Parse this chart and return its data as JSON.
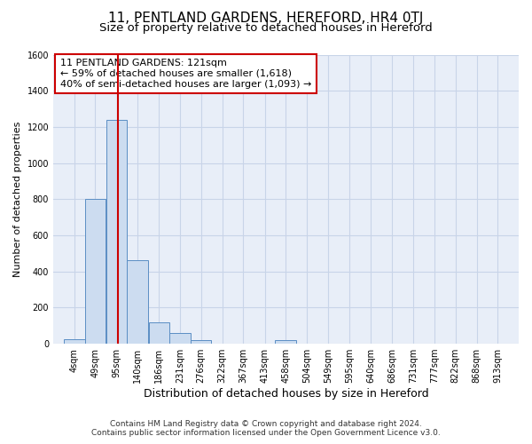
{
  "title_line1": "11, PENTLAND GARDENS, HEREFORD, HR4 0TJ",
  "title_line2": "Size of property relative to detached houses in Hereford",
  "xlabel": "Distribution of detached houses by size in Hereford",
  "ylabel": "Number of detached properties",
  "footer_line1": "Contains HM Land Registry data © Crown copyright and database right 2024.",
  "footer_line2": "Contains public sector information licensed under the Open Government Licence v3.0.",
  "annotation_line1": "11 PENTLAND GARDENS: 121sqm",
  "annotation_line2": "← 59% of detached houses are smaller (1,618)",
  "annotation_line3": "40% of semi-detached houses are larger (1,093) →",
  "property_size_sqm": 121,
  "bar_labels": [
    "4sqm",
    "49sqm",
    "95sqm",
    "140sqm",
    "186sqm",
    "231sqm",
    "276sqm",
    "322sqm",
    "367sqm",
    "413sqm",
    "458sqm",
    "504sqm",
    "549sqm",
    "595sqm",
    "640sqm",
    "686sqm",
    "731sqm",
    "777sqm",
    "822sqm",
    "868sqm",
    "913sqm"
  ],
  "bar_values": [
    25,
    800,
    1240,
    460,
    120,
    60,
    20,
    0,
    0,
    0,
    20,
    0,
    0,
    0,
    0,
    0,
    0,
    0,
    0,
    0,
    0
  ],
  "bin_edges": [
    4,
    49,
    95,
    140,
    186,
    231,
    276,
    322,
    367,
    413,
    458,
    504,
    549,
    595,
    640,
    686,
    731,
    777,
    822,
    868,
    913
  ],
  "bin_width": 45,
  "bar_color": "#ccdcf0",
  "bar_edge_color": "#5b8ec4",
  "vline_color": "#cc0000",
  "vline_x": 121,
  "ylim": [
    0,
    1600
  ],
  "yticks": [
    0,
    200,
    400,
    600,
    800,
    1000,
    1200,
    1400,
    1600
  ],
  "grid_color": "#c8d4e8",
  "background_color": "#e8eef8",
  "annotation_box_facecolor": "#ffffff",
  "annotation_box_edgecolor": "#cc0000",
  "title_fontsize": 11,
  "subtitle_fontsize": 9.5,
  "ylabel_fontsize": 8,
  "xlabel_fontsize": 9,
  "tick_fontsize": 7,
  "annotation_fontsize": 8,
  "footer_fontsize": 6.5
}
